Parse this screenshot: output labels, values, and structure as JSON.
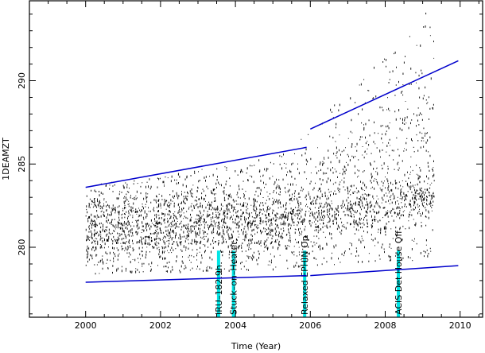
{
  "chart_data": {
    "type": "scatter",
    "xlabel": "Time (Year)",
    "ylabel": "1DEAMZT",
    "xlim": [
      1998.5,
      2010.6
    ],
    "ylim": [
      275.8,
      294.8
    ],
    "x_ticks": [
      2000,
      2002,
      2004,
      2006,
      2008,
      2010
    ],
    "x_tick_labels": [
      "2000",
      "2002",
      "2004",
      "2006",
      "2008",
      "2010"
    ],
    "y_ticks": [
      280,
      285,
      290
    ],
    "y_tick_labels": [
      "280",
      "285",
      "290"
    ],
    "grid": false,
    "legend": "none",
    "colors": {
      "points": "#000000",
      "trend": "#0000cc",
      "events": "#00e5e5"
    },
    "data_envelope": [
      {
        "x": 2000.0,
        "lo": 277.9,
        "mid": 281.2,
        "hi": 283.8
      },
      {
        "x": 2001.0,
        "lo": 278.0,
        "mid": 281.1,
        "hi": 284.0
      },
      {
        "x": 2002.0,
        "lo": 278.0,
        "mid": 281.2,
        "hi": 284.3
      },
      {
        "x": 2003.0,
        "lo": 278.1,
        "mid": 281.3,
        "hi": 284.8
      },
      {
        "x": 2004.0,
        "lo": 278.1,
        "mid": 281.4,
        "hi": 285.0
      },
      {
        "x": 2005.0,
        "lo": 278.2,
        "mid": 281.5,
        "hi": 285.5
      },
      {
        "x": 2006.0,
        "lo": 278.3,
        "mid": 281.7,
        "hi": 287.0
      },
      {
        "x": 2007.0,
        "lo": 278.5,
        "mid": 282.1,
        "hi": 289.5
      },
      {
        "x": 2008.0,
        "lo": 278.6,
        "mid": 282.6,
        "hi": 291.5
      },
      {
        "x": 2008.6,
        "lo": 278.7,
        "mid": 282.8,
        "hi": 292.5
      },
      {
        "x": 2009.0,
        "lo": 278.8,
        "mid": 283.0,
        "hi": 294.5
      },
      {
        "x": 2009.3,
        "lo": 278.8,
        "mid": 283.2,
        "hi": 293.0
      }
    ],
    "trend_lines": [
      {
        "name": "upper-2000-2006",
        "x": [
          2000.0,
          2005.9
        ],
        "y": [
          283.6,
          286.0
        ]
      },
      {
        "name": "upper-2006-2010",
        "x": [
          2006.0,
          2009.95
        ],
        "y": [
          287.1,
          291.2
        ]
      },
      {
        "name": "lower-2000-2006",
        "x": [
          2000.0,
          2005.9
        ],
        "y": [
          277.9,
          278.3
        ]
      },
      {
        "name": "lower-2006-2010",
        "x": [
          2006.0,
          2009.95
        ],
        "y": [
          278.3,
          278.9
        ]
      }
    ],
    "events": [
      {
        "x": 2003.55,
        "label": "IRU–182.9h"
      },
      {
        "x": 2003.95,
        "label": "Stuck–on–Heater"
      },
      {
        "x": 2005.85,
        "label": "Relaxed EPHIN Op"
      },
      {
        "x": 2008.35,
        "label": "ACIS Det House Off"
      }
    ]
  }
}
